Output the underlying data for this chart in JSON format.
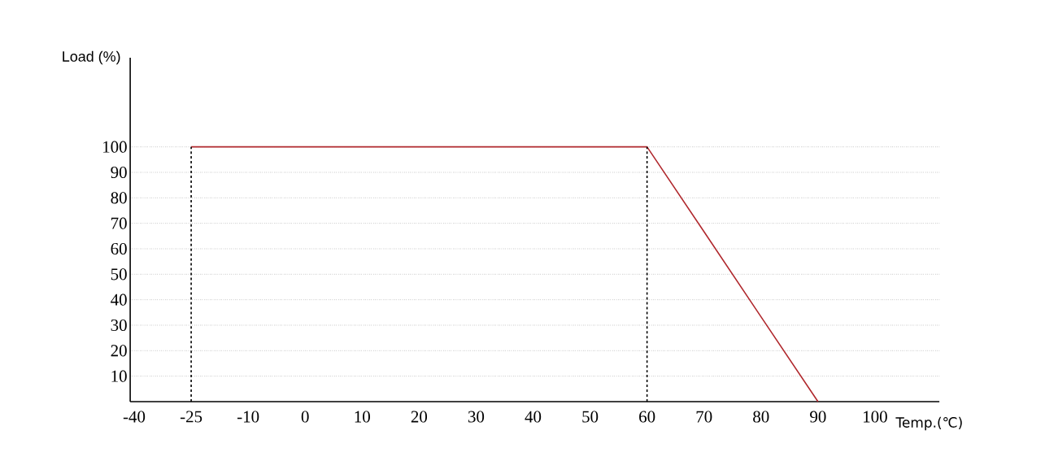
{
  "chart_data": {
    "type": "line",
    "xlabel": "Temp.(℃)",
    "ylabel": "Load (%)",
    "categories": [
      "-40",
      "-25",
      "-10",
      "0",
      "10",
      "20",
      "30",
      "40",
      "50",
      "60",
      "70",
      "80",
      "90",
      "100"
    ],
    "series": [
      {
        "color": "#b0282d",
        "values": [
          null,
          100,
          100,
          100,
          100,
          100,
          100,
          100,
          100,
          100,
          66.7,
          33.3,
          0,
          null
        ]
      }
    ],
    "ylim": [
      0,
      135
    ],
    "yticks": [
      10,
      20,
      30,
      40,
      50,
      60,
      70,
      80,
      90,
      100
    ],
    "grid": "y",
    "marker": "none",
    "line_style": "solid",
    "ref_lines": [
      {
        "axis": "x",
        "value": "-25",
        "line_style": "dashed"
      },
      {
        "axis": "x",
        "value": "60",
        "line_style": "dashed"
      }
    ]
  }
}
